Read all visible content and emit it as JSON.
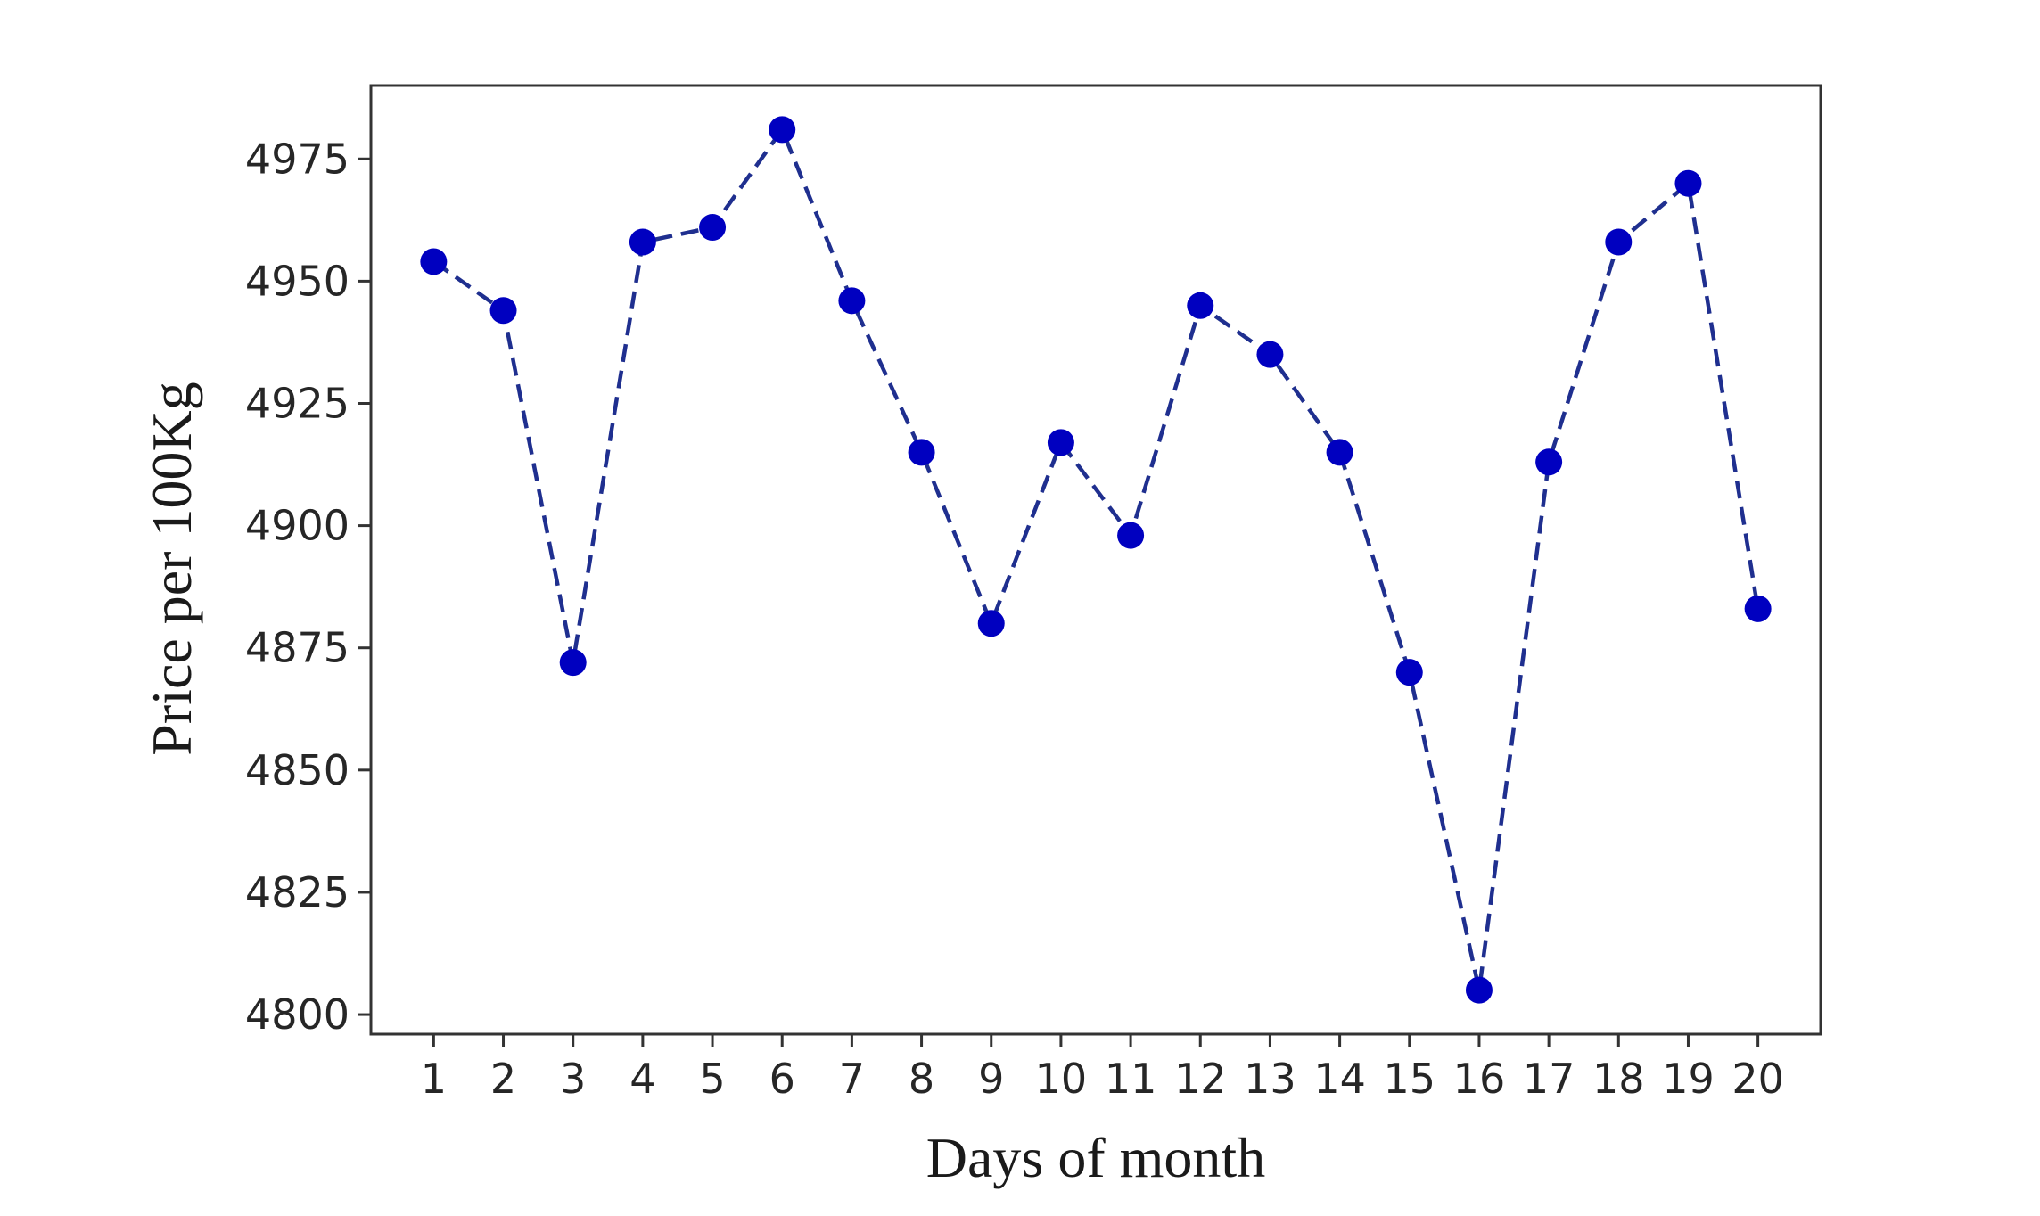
{
  "chart_data": {
    "type": "line",
    "xlabel": "Days of month",
    "ylabel": "Price per 100Kg",
    "x": [
      1,
      2,
      3,
      4,
      5,
      6,
      7,
      8,
      9,
      10,
      11,
      12,
      13,
      14,
      15,
      16,
      17,
      18,
      19,
      20
    ],
    "x_tick_labels": [
      "1",
      "2",
      "3",
      "4",
      "5",
      "6",
      "7",
      "8",
      "9",
      "10",
      "11",
      "12",
      "13",
      "14",
      "15",
      "16",
      "17",
      "18",
      "19",
      "20"
    ],
    "y_ticks": [
      4800,
      4825,
      4850,
      4875,
      4900,
      4925,
      4950,
      4975
    ],
    "y_tick_labels": [
      "4800",
      "4825",
      "4850",
      "4875",
      "4900",
      "4925",
      "4950",
      "4975"
    ],
    "xlim": [
      0.1,
      20.9
    ],
    "ylim": [
      4796,
      4990
    ],
    "grid": false,
    "series": [
      {
        "values": [
          4954,
          4944,
          4872,
          4958,
          4961,
          4981,
          4946,
          4915,
          4880,
          4917,
          4898,
          4945,
          4935,
          4915,
          4870,
          4805,
          4913,
          4958,
          4970,
          4883
        ],
        "color": "#0000b3",
        "line_style": "dashed",
        "marker": "circle"
      }
    ],
    "colors": {
      "line": "#1f2f8f",
      "marker": "#0000c0",
      "frame": "#333333",
      "text": "#262626"
    }
  }
}
